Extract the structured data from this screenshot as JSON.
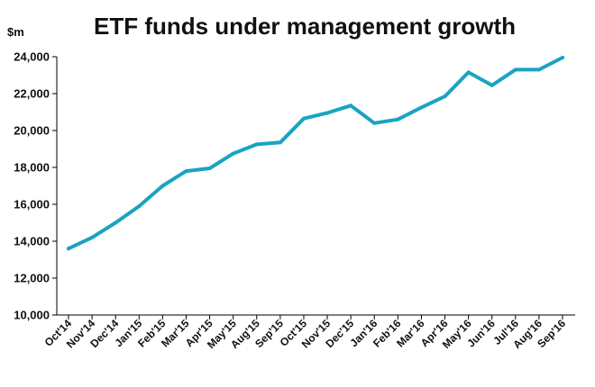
{
  "chart_data": {
    "type": "line",
    "title": "ETF funds under management growth",
    "ylabel": "$m",
    "xlabel": "",
    "ylim": [
      10000,
      24000
    ],
    "yticks": [
      10000,
      12000,
      14000,
      16000,
      18000,
      20000,
      22000,
      24000
    ],
    "ytick_labels": [
      "10,000",
      "12,000",
      "14,000",
      "16,000",
      "18,000",
      "20,000",
      "22,000",
      "24,000"
    ],
    "categories": [
      "Oct'14",
      "Nov'14",
      "Dec'14",
      "Jan'15",
      "Feb'15",
      "Mar'15",
      "Apr'15",
      "May'15",
      "Aug'15",
      "Sep'15",
      "Oct'15",
      "Nov'15",
      "Dec'15",
      "Jan'16",
      "Feb'16",
      "Mar'16",
      "Apr'16",
      "May'16",
      "Jun'16",
      "Jul'16",
      "Aug'16",
      "Sep'16"
    ],
    "series": [
      {
        "values": [
          13600,
          14200,
          15000,
          15900,
          17000,
          17800,
          17950,
          18750,
          19250,
          19350,
          20650,
          20950,
          21350,
          20400,
          20600,
          21250,
          21850,
          23150,
          22450,
          23300,
          23300,
          23950
        ]
      }
    ],
    "grid": false,
    "line_color": "#1aa3c2"
  }
}
